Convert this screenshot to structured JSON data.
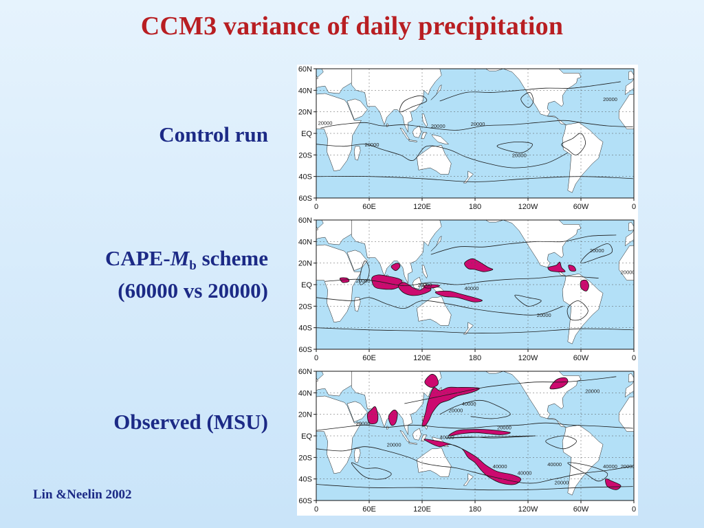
{
  "slide": {
    "title": "CCM3 variance of daily precipitation",
    "citation": "Lin &Neelin 2002"
  },
  "panels": [
    {
      "label_lines": [
        "Control run"
      ]
    },
    {
      "label_prefix": "CAPE-",
      "label_italic": "M",
      "label_sub": "b",
      "label_suffix": " scheme",
      "label_line2": "(60000 vs 20000)"
    },
    {
      "label_lines": [
        "Observed (MSU)"
      ]
    }
  ],
  "map_axes": {
    "lat_ticks": [
      "60N",
      "40N",
      "20N",
      "EQ",
      "20S",
      "40S",
      "60S"
    ],
    "lon_ticks": [
      "0",
      "60E",
      "120E",
      "180",
      "120W",
      "60W",
      "0"
    ]
  },
  "contour_labels": {
    "control": [
      "20000",
      "20000",
      "20000",
      "20000",
      "20000",
      "20000"
    ],
    "cape": [
      "20000",
      "20000",
      "40000",
      "20000",
      "20000",
      "20000"
    ],
    "observed": [
      "20000",
      "20000",
      "40000",
      "20000",
      "20000",
      "40000",
      "40000",
      "40000",
      "40000",
      "20000",
      "20000",
      "40000",
      "20000"
    ]
  },
  "colors": {
    "title": "#b81e22",
    "label": "#1c2a86",
    "ocean": "#b3e0f7",
    "land": "#ffffff",
    "high_variance_fill": "#cc0a6f",
    "contour": "#1a1a1a"
  }
}
